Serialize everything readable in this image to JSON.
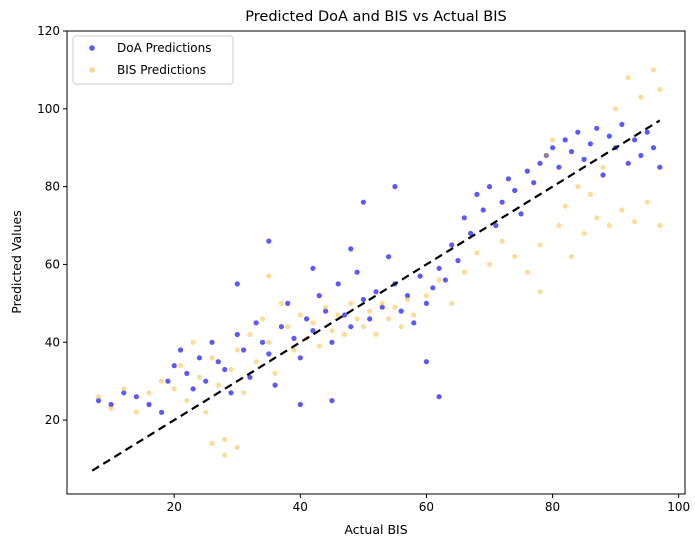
{
  "chart_data": {
    "type": "scatter",
    "title": "Predicted DoA and BIS vs Actual BIS",
    "xlabel": "Actual BIS",
    "ylabel": "Predicted Values",
    "xlim": [
      3,
      101
    ],
    "ylim": [
      1,
      120
    ],
    "xticks": [
      20,
      40,
      60,
      80,
      100
    ],
    "yticks": [
      20,
      40,
      60,
      80,
      100,
      120
    ],
    "grid": false,
    "legend_position": "top-left",
    "series": [
      {
        "name": "DoA Predictions",
        "color": "#0000ff",
        "points": [
          [
            8,
            25
          ],
          [
            10,
            24
          ],
          [
            12,
            27
          ],
          [
            14,
            26
          ],
          [
            16,
            24
          ],
          [
            18,
            22
          ],
          [
            19,
            30
          ],
          [
            20,
            34
          ],
          [
            21,
            38
          ],
          [
            22,
            32
          ],
          [
            23,
            28
          ],
          [
            24,
            36
          ],
          [
            25,
            30
          ],
          [
            26,
            40
          ],
          [
            27,
            35
          ],
          [
            28,
            33
          ],
          [
            29,
            27
          ],
          [
            30,
            42
          ],
          [
            31,
            38
          ],
          [
            32,
            31
          ],
          [
            33,
            45
          ],
          [
            34,
            40
          ],
          [
            35,
            37
          ],
          [
            36,
            29
          ],
          [
            37,
            44
          ],
          [
            38,
            50
          ],
          [
            39,
            41
          ],
          [
            40,
            36
          ],
          [
            41,
            46
          ],
          [
            42,
            43
          ],
          [
            43,
            52
          ],
          [
            44,
            48
          ],
          [
            45,
            40
          ],
          [
            46,
            55
          ],
          [
            47,
            47
          ],
          [
            48,
            44
          ],
          [
            49,
            58
          ],
          [
            50,
            51
          ],
          [
            51,
            46
          ],
          [
            52,
            53
          ],
          [
            53,
            49
          ],
          [
            54,
            62
          ],
          [
            55,
            55
          ],
          [
            56,
            48
          ],
          [
            57,
            52
          ],
          [
            58,
            45
          ],
          [
            59,
            57
          ],
          [
            60,
            50
          ],
          [
            61,
            54
          ],
          [
            62,
            59
          ],
          [
            63,
            56
          ],
          [
            64,
            65
          ],
          [
            65,
            61
          ],
          [
            66,
            72
          ],
          [
            67,
            68
          ],
          [
            68,
            78
          ],
          [
            69,
            74
          ],
          [
            70,
            80
          ],
          [
            71,
            70
          ],
          [
            72,
            76
          ],
          [
            73,
            82
          ],
          [
            74,
            79
          ],
          [
            75,
            73
          ],
          [
            76,
            84
          ],
          [
            77,
            81
          ],
          [
            78,
            86
          ],
          [
            79,
            88
          ],
          [
            80,
            90
          ],
          [
            81,
            85
          ],
          [
            82,
            92
          ],
          [
            83,
            89
          ],
          [
            84,
            94
          ],
          [
            85,
            87
          ],
          [
            86,
            91
          ],
          [
            87,
            95
          ],
          [
            88,
            83
          ],
          [
            89,
            93
          ],
          [
            90,
            90
          ],
          [
            91,
            96
          ],
          [
            92,
            86
          ],
          [
            93,
            92
          ],
          [
            94,
            88
          ],
          [
            95,
            94
          ],
          [
            96,
            90
          ],
          [
            97,
            85
          ],
          [
            35,
            66
          ],
          [
            42,
            59
          ],
          [
            50,
            76
          ],
          [
            55,
            80
          ],
          [
            60,
            35
          ],
          [
            40,
            24
          ],
          [
            45,
            25
          ],
          [
            62,
            26
          ],
          [
            30,
            55
          ],
          [
            48,
            64
          ]
        ]
      },
      {
        "name": "BIS Predictions",
        "color": "#ffa500",
        "points": [
          [
            8,
            26
          ],
          [
            10,
            23
          ],
          [
            12,
            28
          ],
          [
            14,
            22
          ],
          [
            16,
            27
          ],
          [
            18,
            30
          ],
          [
            20,
            28
          ],
          [
            21,
            34
          ],
          [
            22,
            25
          ],
          [
            23,
            40
          ],
          [
            24,
            31
          ],
          [
            25,
            22
          ],
          [
            26,
            36
          ],
          [
            27,
            29
          ],
          [
            28,
            15
          ],
          [
            29,
            33
          ],
          [
            30,
            38
          ],
          [
            31,
            27
          ],
          [
            32,
            42
          ],
          [
            33,
            35
          ],
          [
            34,
            46
          ],
          [
            35,
            40
          ],
          [
            36,
            32
          ],
          [
            37,
            50
          ],
          [
            38,
            44
          ],
          [
            39,
            38
          ],
          [
            40,
            47
          ],
          [
            41,
            41
          ],
          [
            42,
            45
          ],
          [
            43,
            39
          ],
          [
            44,
            49
          ],
          [
            45,
            43
          ],
          [
            46,
            47
          ],
          [
            47,
            42
          ],
          [
            48,
            50
          ],
          [
            49,
            46
          ],
          [
            50,
            44
          ],
          [
            51,
            48
          ],
          [
            52,
            42
          ],
          [
            53,
            50
          ],
          [
            54,
            46
          ],
          [
            55,
            49
          ],
          [
            56,
            44
          ],
          [
            57,
            51
          ],
          [
            58,
            47
          ],
          [
            60,
            52
          ],
          [
            62,
            56
          ],
          [
            64,
            50
          ],
          [
            66,
            58
          ],
          [
            68,
            63
          ],
          [
            70,
            60
          ],
          [
            72,
            66
          ],
          [
            74,
            62
          ],
          [
            76,
            58
          ],
          [
            78,
            65
          ],
          [
            79,
            88
          ],
          [
            80,
            92
          ],
          [
            81,
            70
          ],
          [
            82,
            75
          ],
          [
            83,
            62
          ],
          [
            84,
            80
          ],
          [
            85,
            68
          ],
          [
            86,
            78
          ],
          [
            87,
            72
          ],
          [
            88,
            85
          ],
          [
            89,
            70
          ],
          [
            90,
            100
          ],
          [
            91,
            74
          ],
          [
            92,
            108
          ],
          [
            93,
            71
          ],
          [
            94,
            103
          ],
          [
            95,
            76
          ],
          [
            96,
            110
          ],
          [
            97,
            105
          ],
          [
            97,
            70
          ],
          [
            28,
            11
          ],
          [
            30,
            13
          ],
          [
            26,
            14
          ],
          [
            35,
            57
          ],
          [
            78,
            53
          ]
        ]
      }
    ],
    "reference_line": {
      "style": "dashed",
      "color": "#000000",
      "points": [
        [
          7,
          7
        ],
        [
          97,
          97
        ]
      ]
    }
  }
}
